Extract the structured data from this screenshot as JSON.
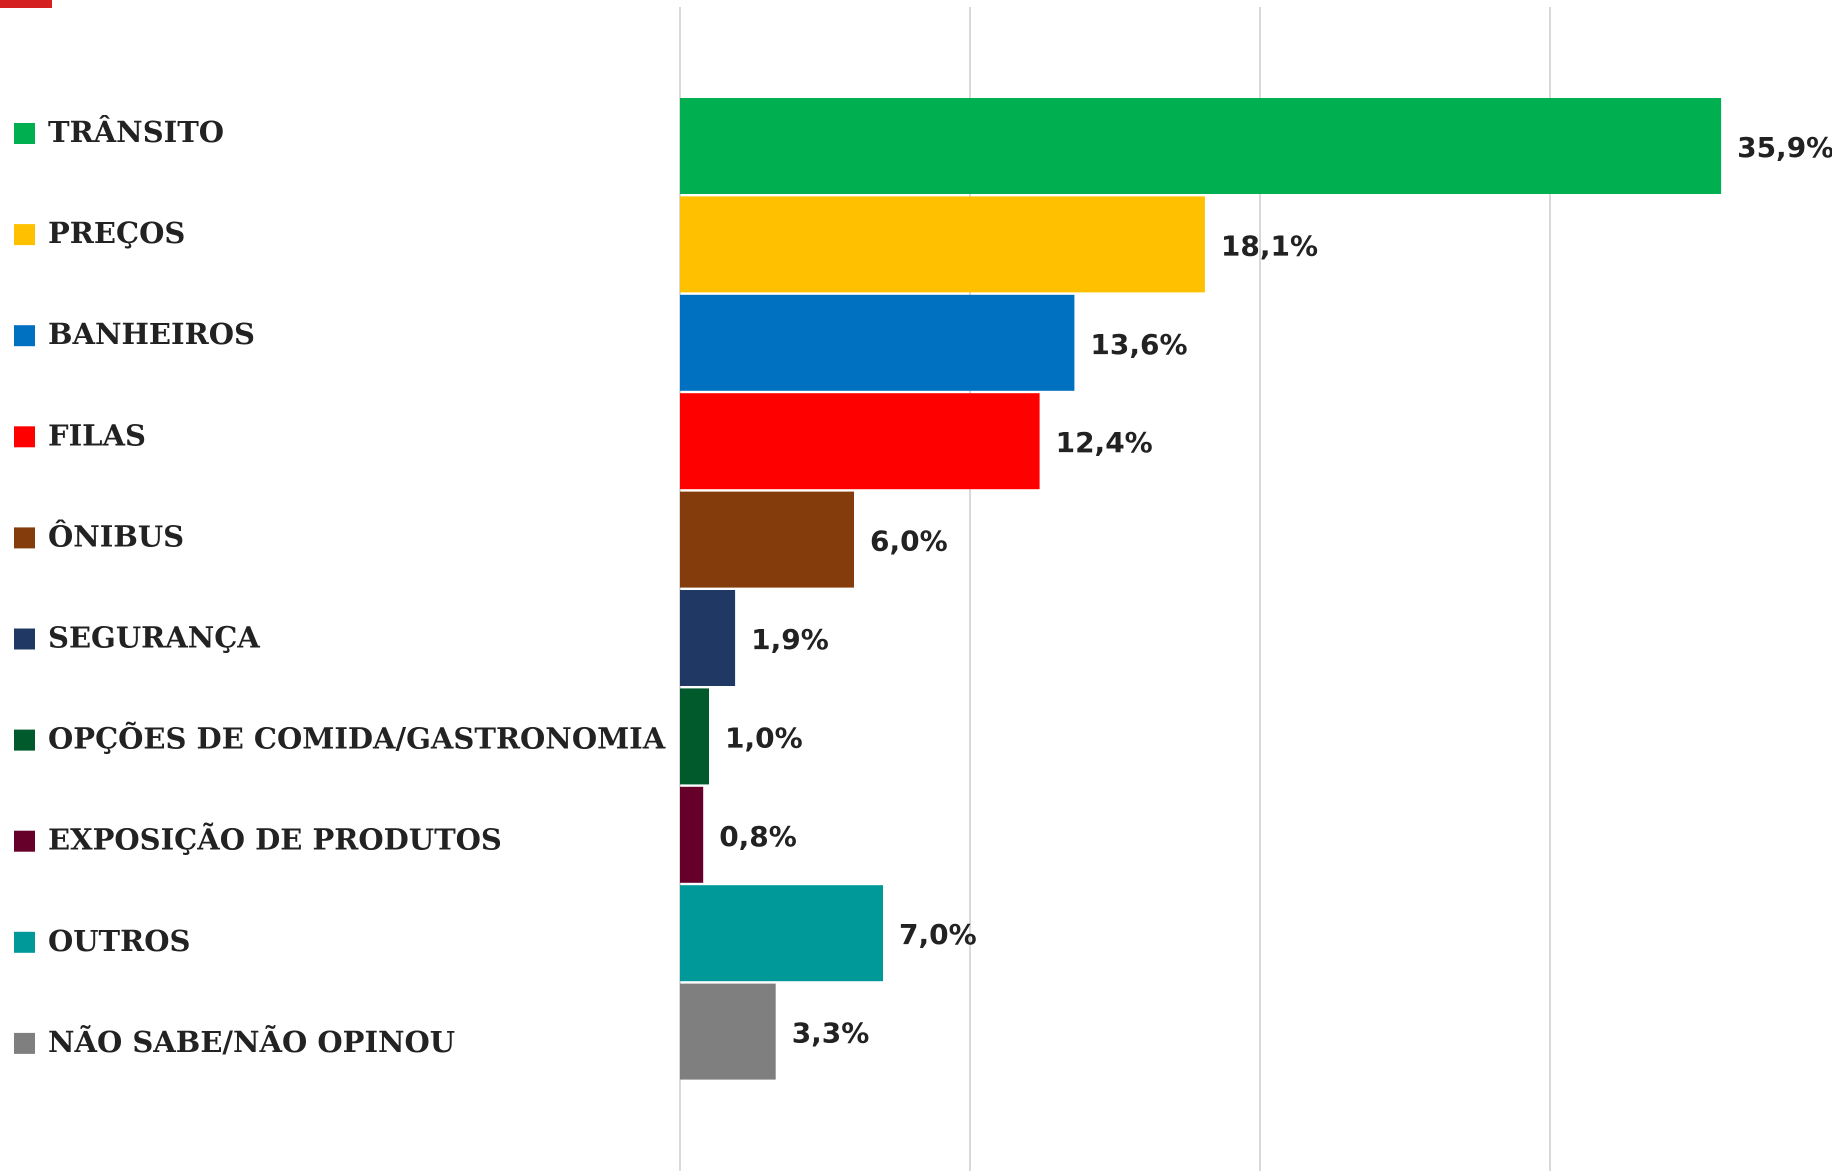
{
  "chart_data": {
    "type": "barh",
    "categories": [
      "TRÂNSITO",
      "PREÇOS",
      "BANHEIROS",
      "FILAS",
      "ÔNIBUS",
      "SEGURANÇA",
      "OPÇÕES DE COMIDA/GASTRONOMIA",
      "EXPOSIÇÃO DE PRODUTOS",
      "OUTROS",
      "NÃO SABE/NÃO OPINOU"
    ],
    "values": [
      35.9,
      18.1,
      13.6,
      12.4,
      6.0,
      1.9,
      1.0,
      0.8,
      7.0,
      3.3
    ],
    "value_labels": [
      "35,9%",
      "18,1%",
      "13,6%",
      "12,4%",
      "6,0%",
      "1,9%",
      "1,0%",
      "0,8%",
      "7,0%",
      "3,3%"
    ],
    "colors": [
      "#00b050",
      "#ffc000",
      "#0070c0",
      "#ff0000",
      "#843c0c",
      "#203864",
      "#005a2b",
      "#66002b",
      "#009999",
      "#7f7f7f"
    ],
    "xlim": [
      0,
      40
    ],
    "xticks": [
      0,
      10,
      20,
      30
    ],
    "grid": true
  }
}
